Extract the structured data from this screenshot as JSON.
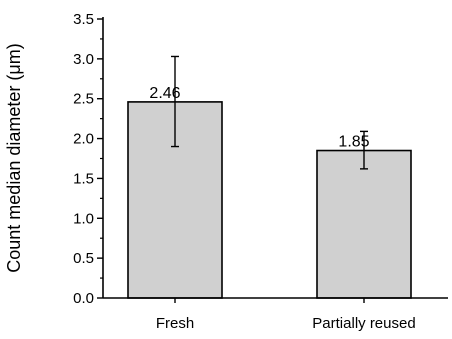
{
  "chart_data": {
    "type": "bar",
    "categories": [
      "Fresh",
      "Partially reused"
    ],
    "values": [
      2.46,
      1.85
    ],
    "data_labels": [
      "2.46",
      "1.85"
    ],
    "error_bars": {
      "upper": [
        3.03,
        2.09
      ],
      "lower": [
        1.9,
        1.62
      ]
    },
    "xlabel": "",
    "ylabel": "Count median diameter (μm)",
    "ylim": [
      0.0,
      3.5
    ],
    "yticks": [
      "0.0",
      "0.5",
      "1.0",
      "1.5",
      "2.0",
      "2.5",
      "3.0",
      "3.5"
    ],
    "ytick_values": [
      0.0,
      0.5,
      1.0,
      1.5,
      2.0,
      2.5,
      3.0,
      3.5
    ],
    "grid": false,
    "bar_color": "#d0d0d0",
    "edge_color": "#000000"
  }
}
